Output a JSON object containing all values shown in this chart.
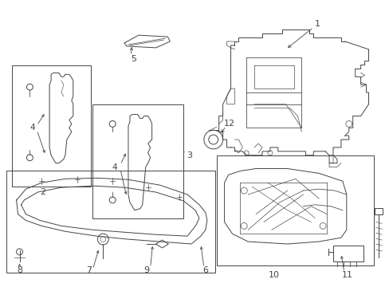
{
  "background_color": "#ffffff",
  "line_color": "#444444",
  "label_color": "#111111",
  "figure_width": 4.89,
  "figure_height": 3.6,
  "dpi": 100
}
